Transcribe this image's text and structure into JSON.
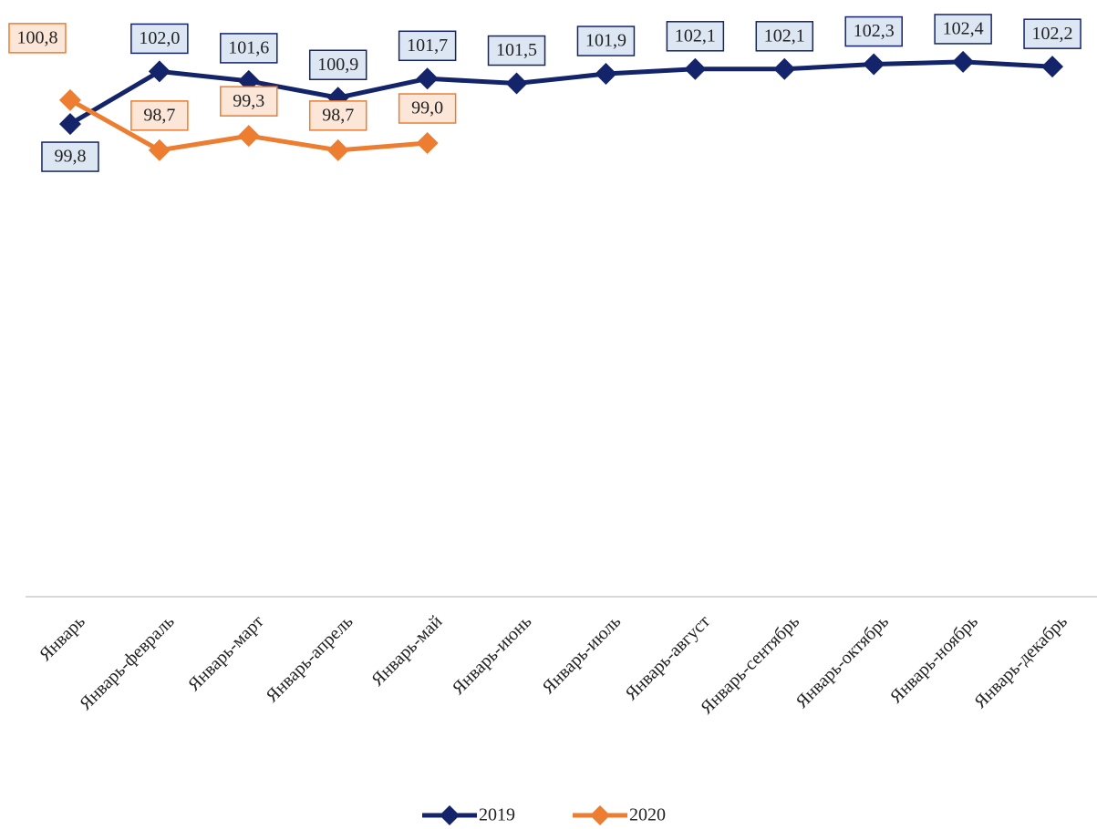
{
  "chart_data": {
    "type": "line",
    "categories": [
      "Январь",
      "Январь-февраль",
      "Январь-март",
      "Январь-апрель",
      "Январь-май",
      "Январь-июнь",
      "Январь-июль",
      "Январь-август",
      "Январь-сентябрь",
      "Январь-октябрь",
      "Январь-ноябрь",
      "Январь-декабрь"
    ],
    "series": [
      {
        "name": "2019",
        "color": "#14246a",
        "label_fill": "#dde7f3",
        "values": [
          99.8,
          102.0,
          101.6,
          100.9,
          101.7,
          101.5,
          101.9,
          102.1,
          102.1,
          102.3,
          102.4,
          102.2
        ],
        "value_labels": [
          "99,8",
          "102,0",
          "101,6",
          "100,9",
          "101,7",
          "101,5",
          "101,9",
          "102,1",
          "102,1",
          "102,3",
          "102,4",
          "102,2"
        ]
      },
      {
        "name": "2020",
        "color": "#ed7d31",
        "label_fill": "#fce6d8",
        "values": [
          100.8,
          98.7,
          99.3,
          98.7,
          99.0,
          null,
          null,
          null,
          null,
          null,
          null,
          null
        ],
        "value_labels": [
          "100,8",
          "98,7",
          "99,3",
          "98,7",
          "99,0",
          null,
          null,
          null,
          null,
          null,
          null,
          null
        ]
      }
    ],
    "ylim": [
      80,
      104
    ],
    "legend": "bottom"
  }
}
